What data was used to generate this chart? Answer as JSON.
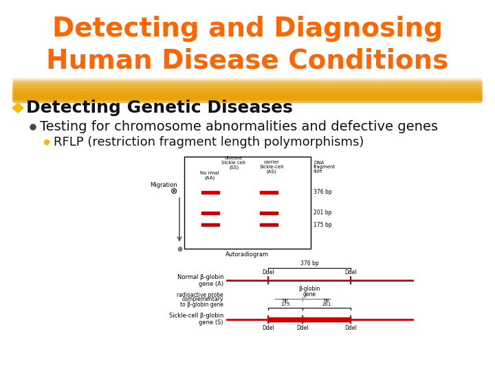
{
  "title_line1": "Detecting and Diagnosing",
  "title_line2": "Human Disease Conditions",
  "title_color": "#FF6600",
  "title_fontsize": 28,
  "highlight_color": "#E8A000",
  "bg_color": "#FFFFFF",
  "bullet1_text": "Detecting Genetic Diseases",
  "bullet1_color": "#FF8C00",
  "bullet1_fontsize": 18,
  "bullet2_text": "Testing for chromosome abnormalities and defective genes",
  "bullet2_fontsize": 14,
  "bullet3_text": "RFLP (restriction fragment length polymorphisms)",
  "bullet3_fontsize": 13,
  "text_color": "#111111",
  "band_color": "#CC0000",
  "gene_color": "#CC0000"
}
